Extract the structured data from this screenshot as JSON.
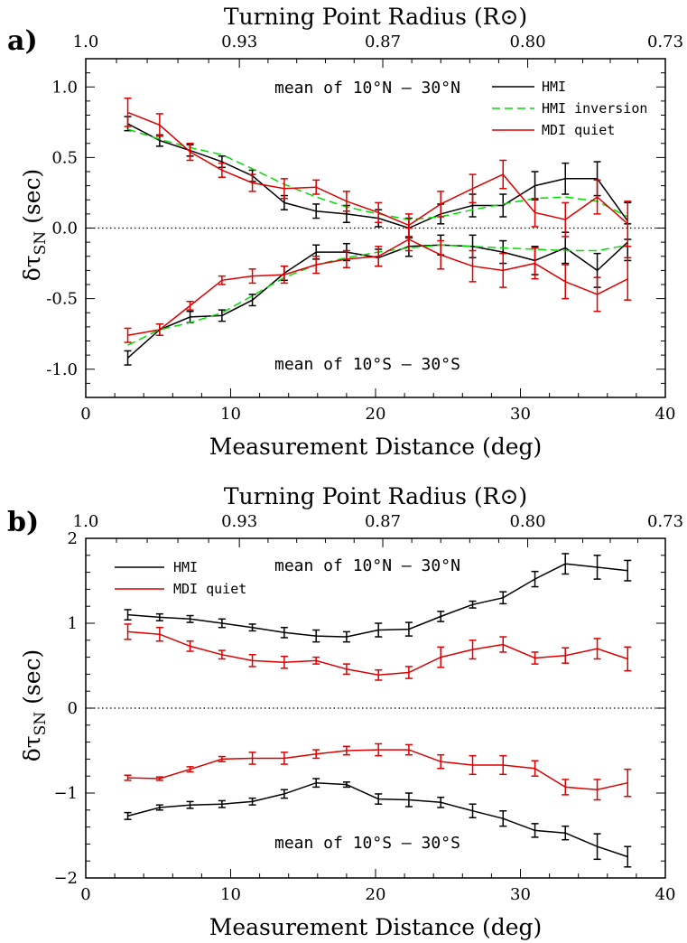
{
  "chart_data": [
    {
      "type": "line",
      "panel_label": "a)",
      "xlabel": "Measurement Distance (deg)",
      "top_xlabel": "Turning Point Radius (R⊙)",
      "ylabel": "δτ",
      "ylabel_sub": "SN",
      "ylabel_unit": " (sec)",
      "xlim": [
        0,
        40
      ],
      "ylim": [
        -1.2,
        1.2
      ],
      "x_ticks": [
        "0",
        "10",
        "20",
        "30",
        "40"
      ],
      "y_ticks": [
        "-1.0",
        "-0.5",
        "0.0",
        "0.5",
        "1.0"
      ],
      "top_ticks": [
        "1.0",
        "0.93",
        "0.87",
        "0.80",
        "0.73"
      ],
      "top_tick_x": [
        0,
        10.6,
        20.5,
        30.5,
        40
      ],
      "annotations": {
        "north": "mean of 10°N – 30°N",
        "south": "mean of 10°S – 30°S"
      },
      "legend": [
        {
          "label": "HMI",
          "color": "#000000",
          "dash": "solid"
        },
        {
          "label": "HMI inversion",
          "color": "#00dd00",
          "dash": "dashed"
        },
        {
          "label": "MDI quiet",
          "color": "#dd0000",
          "dash": "solid"
        }
      ],
      "zero_line": "dotted",
      "x": [
        2.9,
        5.1,
        7.2,
        9.4,
        11.5,
        13.7,
        15.9,
        18.0,
        20.2,
        22.3,
        24.5,
        26.7,
        28.8,
        31.0,
        33.1,
        35.3,
        37.4
      ],
      "series": [
        {
          "name": "HMI",
          "group": "north",
          "color": "#000000",
          "dash": "solid",
          "values": [
            0.74,
            0.62,
            0.55,
            0.47,
            0.37,
            0.18,
            0.12,
            0.1,
            0.07,
            0.0,
            0.1,
            0.16,
            0.16,
            0.3,
            0.35,
            0.35,
            0.05
          ],
          "errors": [
            0.05,
            0.04,
            0.04,
            0.04,
            0.04,
            0.05,
            0.05,
            0.06,
            0.06,
            0.07,
            0.07,
            0.08,
            0.08,
            0.1,
            0.11,
            0.12,
            0.13
          ]
        },
        {
          "name": "HMI",
          "group": "south",
          "color": "#000000",
          "dash": "solid",
          "values": [
            -0.92,
            -0.72,
            -0.63,
            -0.62,
            -0.51,
            -0.32,
            -0.17,
            -0.17,
            -0.21,
            -0.13,
            -0.12,
            -0.13,
            -0.17,
            -0.23,
            -0.14,
            -0.3,
            -0.1
          ],
          "errors": [
            0.05,
            0.04,
            0.04,
            0.04,
            0.04,
            0.05,
            0.05,
            0.06,
            0.06,
            0.07,
            0.07,
            0.08,
            0.08,
            0.1,
            0.11,
            0.12,
            0.13
          ]
        },
        {
          "name": "HMI inversion",
          "group": "north",
          "color": "#00dd00",
          "dash": "dashed",
          "values": [
            0.7,
            0.63,
            0.57,
            0.52,
            0.42,
            0.31,
            0.22,
            0.15,
            0.1,
            0.06,
            0.08,
            0.13,
            0.17,
            0.21,
            0.22,
            0.19,
            0.08
          ]
        },
        {
          "name": "HMI inversion",
          "group": "south",
          "color": "#00dd00",
          "dash": "dashed",
          "values": [
            -0.83,
            -0.72,
            -0.67,
            -0.6,
            -0.48,
            -0.35,
            -0.26,
            -0.21,
            -0.17,
            -0.14,
            -0.12,
            -0.13,
            -0.14,
            -0.15,
            -0.16,
            -0.16,
            -0.12
          ]
        },
        {
          "name": "MDI quiet",
          "group": "north",
          "color": "#dd0000",
          "dash": "solid",
          "values": [
            0.82,
            0.73,
            0.54,
            0.41,
            0.32,
            0.28,
            0.29,
            0.19,
            0.11,
            0.02,
            0.17,
            0.28,
            0.38,
            0.11,
            0.06,
            0.22,
            0.03
          ],
          "errors": [
            0.1,
            0.08,
            0.06,
            0.05,
            0.06,
            0.07,
            0.05,
            0.07,
            0.07,
            0.08,
            0.09,
            0.1,
            0.1,
            0.1,
            0.12,
            0.12,
            0.16
          ]
        },
        {
          "name": "MDI quiet",
          "group": "south",
          "color": "#dd0000",
          "dash": "solid",
          "values": [
            -0.76,
            -0.72,
            -0.55,
            -0.37,
            -0.34,
            -0.33,
            -0.26,
            -0.22,
            -0.2,
            -0.08,
            -0.19,
            -0.27,
            -0.3,
            -0.25,
            -0.38,
            -0.47,
            -0.36
          ],
          "errors": [
            0.05,
            0.04,
            0.03,
            0.03,
            0.05,
            0.06,
            0.06,
            0.06,
            0.07,
            0.08,
            0.1,
            0.11,
            0.12,
            0.11,
            0.12,
            0.12,
            0.15
          ]
        }
      ]
    },
    {
      "type": "line",
      "panel_label": "b)",
      "xlabel": "Measurement Distance (deg)",
      "top_xlabel": "Turning Point Radius (R⊙)",
      "ylabel": "δτ",
      "ylabel_sub": "SN",
      "ylabel_unit": " (sec)",
      "xlim": [
        0,
        40
      ],
      "ylim": [
        -2.0,
        2.0
      ],
      "x_ticks": [
        "0",
        "10",
        "20",
        "30",
        "40"
      ],
      "y_ticks": [
        "−2",
        "−1",
        "0",
        "1",
        "2"
      ],
      "top_ticks": [
        "1.0",
        "0.93",
        "0.87",
        "0.80",
        "0.73"
      ],
      "top_tick_x": [
        0,
        10.6,
        20.5,
        30.5,
        40
      ],
      "annotations": {
        "north": "mean of 10°N – 30°N",
        "south": "mean of 10°S – 30°S"
      },
      "legend": [
        {
          "label": "HMI",
          "color": "#000000",
          "dash": "solid"
        },
        {
          "label": "MDI quiet",
          "color": "#dd0000",
          "dash": "solid"
        }
      ],
      "zero_line": "dotted",
      "x": [
        2.9,
        5.1,
        7.2,
        9.4,
        11.5,
        13.7,
        15.9,
        18.0,
        20.2,
        22.3,
        24.5,
        26.7,
        28.8,
        31.0,
        33.1,
        35.3,
        37.4
      ],
      "series": [
        {
          "name": "HMI",
          "group": "north",
          "color": "#000000",
          "dash": "solid",
          "values": [
            1.1,
            1.07,
            1.05,
            1.0,
            0.95,
            0.89,
            0.85,
            0.84,
            0.92,
            0.93,
            1.08,
            1.22,
            1.3,
            1.52,
            1.7,
            1.66,
            1.62
          ],
          "errors": [
            0.06,
            0.04,
            0.04,
            0.05,
            0.04,
            0.06,
            0.07,
            0.06,
            0.08,
            0.08,
            0.06,
            0.04,
            0.07,
            0.09,
            0.12,
            0.14,
            0.12
          ]
        },
        {
          "name": "HMI",
          "group": "south",
          "color": "#000000",
          "dash": "solid",
          "values": [
            -1.27,
            -1.17,
            -1.14,
            -1.13,
            -1.1,
            -1.01,
            -0.88,
            -0.9,
            -1.07,
            -1.08,
            -1.11,
            -1.21,
            -1.3,
            -1.44,
            -1.47,
            -1.63,
            -1.75
          ],
          "errors": [
            0.04,
            0.03,
            0.04,
            0.04,
            0.04,
            0.05,
            0.05,
            0.03,
            0.06,
            0.08,
            0.06,
            0.08,
            0.09,
            0.08,
            0.08,
            0.15,
            0.12
          ]
        },
        {
          "name": "MDI quiet",
          "group": "north",
          "color": "#dd0000",
          "dash": "solid",
          "values": [
            0.9,
            0.87,
            0.73,
            0.63,
            0.56,
            0.54,
            0.56,
            0.46,
            0.39,
            0.42,
            0.6,
            0.69,
            0.75,
            0.59,
            0.62,
            0.7,
            0.58
          ],
          "errors": [
            0.09,
            0.08,
            0.06,
            0.05,
            0.07,
            0.07,
            0.04,
            0.06,
            0.06,
            0.07,
            0.12,
            0.11,
            0.09,
            0.07,
            0.09,
            0.12,
            0.14
          ]
        },
        {
          "name": "MDI quiet",
          "group": "south",
          "color": "#dd0000",
          "dash": "solid",
          "values": [
            -0.82,
            -0.83,
            -0.72,
            -0.6,
            -0.59,
            -0.59,
            -0.54,
            -0.5,
            -0.49,
            -0.49,
            -0.63,
            -0.67,
            -0.67,
            -0.71,
            -0.93,
            -0.96,
            -0.88
          ],
          "errors": [
            0.03,
            0.02,
            0.03,
            0.03,
            0.07,
            0.07,
            0.05,
            0.05,
            0.07,
            0.06,
            0.08,
            0.11,
            0.11,
            0.09,
            0.09,
            0.12,
            0.16
          ]
        }
      ]
    }
  ]
}
